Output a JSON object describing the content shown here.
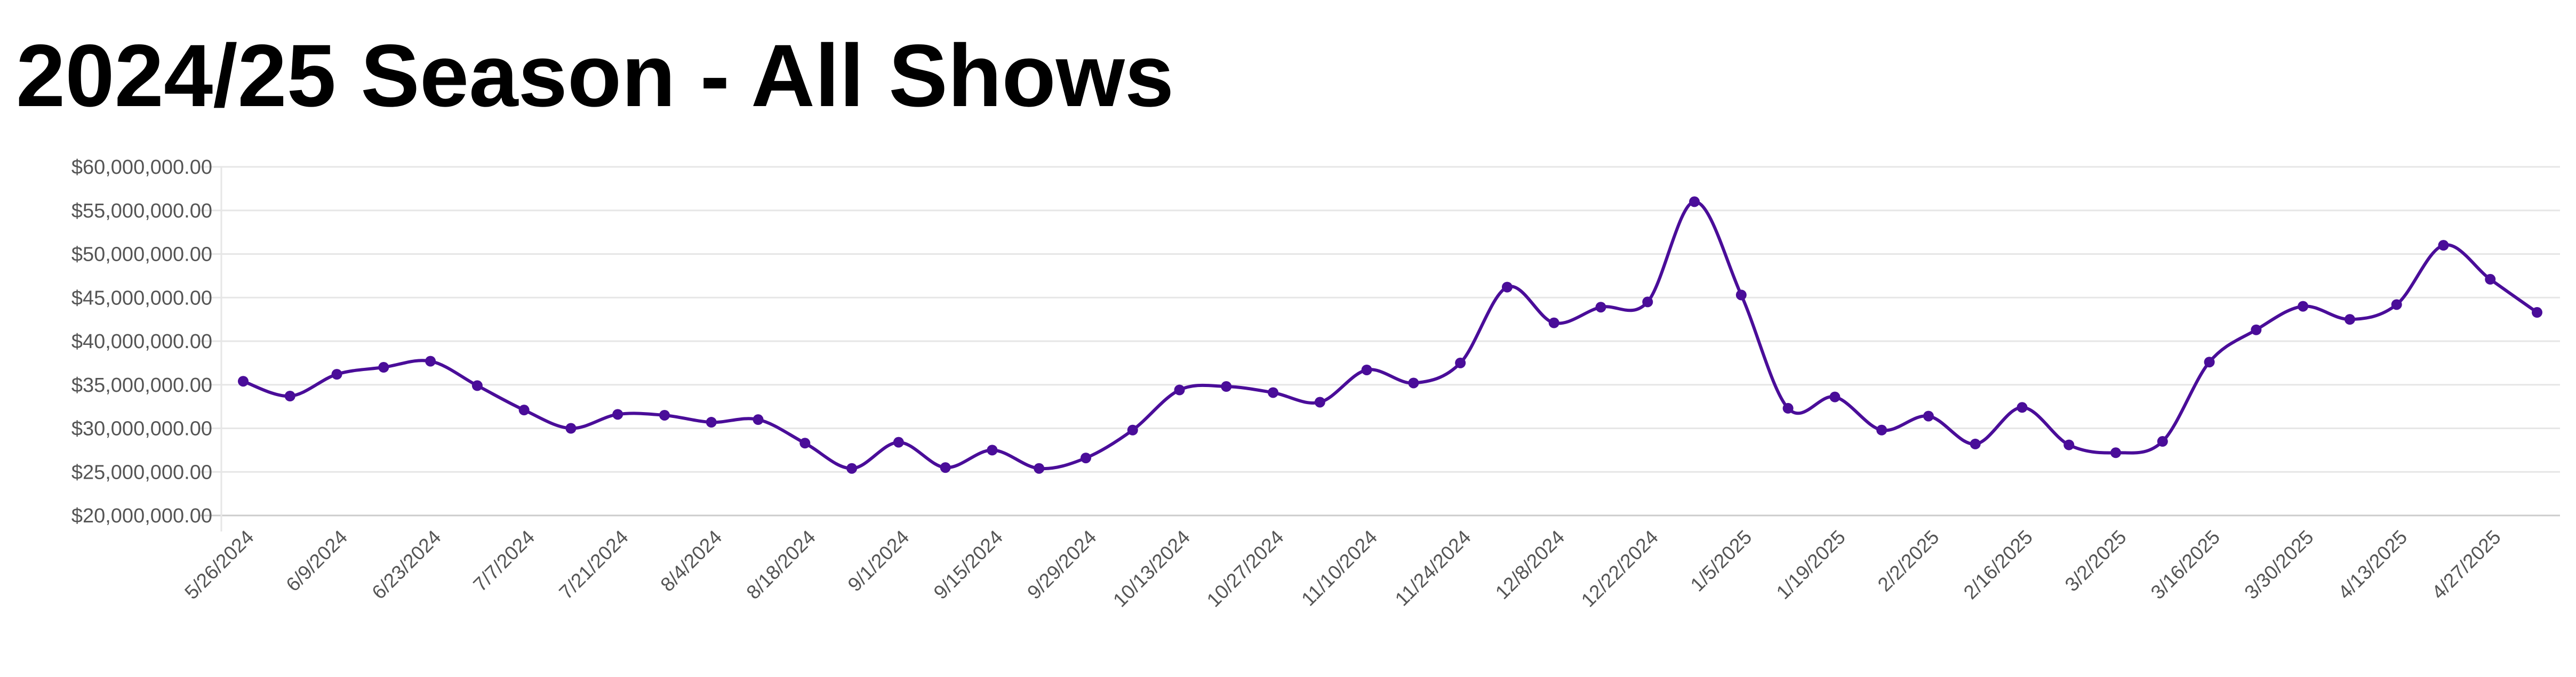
{
  "title": "2024/25 Season - All Shows",
  "chart_data": {
    "type": "line",
    "title": "2024/25 Season - All Shows",
    "xlabel": "",
    "ylabel": "",
    "x": [
      "5/26/2024",
      "6/2/2024",
      "6/9/2024",
      "6/16/2024",
      "6/23/2024",
      "6/30/2024",
      "7/7/2024",
      "7/14/2024",
      "7/21/2024",
      "7/28/2024",
      "8/4/2024",
      "8/11/2024",
      "8/18/2024",
      "8/25/2024",
      "9/1/2024",
      "9/8/2024",
      "9/15/2024",
      "9/22/2024",
      "9/29/2024",
      "10/6/2024",
      "10/13/2024",
      "10/20/2024",
      "10/27/2024",
      "11/3/2024",
      "11/10/2024",
      "11/17/2024",
      "11/24/2024",
      "12/1/2024",
      "12/8/2024",
      "12/15/2024",
      "12/22/2024",
      "12/29/2024",
      "1/5/2025",
      "1/12/2025",
      "1/19/2025",
      "1/26/2025",
      "2/2/2025",
      "2/9/2025",
      "2/16/2025",
      "2/23/2025",
      "3/2/2025",
      "3/9/2025",
      "3/16/2025",
      "3/23/2025",
      "3/30/2025",
      "4/6/2025",
      "4/13/2025",
      "4/20/2025",
      "4/27/2025",
      "5/4/2025"
    ],
    "values": [
      35400000,
      33700000,
      36200000,
      37000000,
      37700000,
      34900000,
      32100000,
      30000000,
      31600000,
      31500000,
      30700000,
      31000000,
      28300000,
      25400000,
      28400000,
      25500000,
      27500000,
      25400000,
      26600000,
      29800000,
      34400000,
      34800000,
      34100000,
      33000000,
      36700000,
      35200000,
      37500000,
      46200000,
      42100000,
      43900000,
      44500000,
      56000000,
      45300000,
      32300000,
      33600000,
      29800000,
      31400000,
      28200000,
      32400000,
      28100000,
      27200000,
      28500000,
      37600000,
      41300000,
      44000000,
      42500000,
      44200000,
      51000000,
      47100000,
      43300000
    ],
    "xtick_labels": [
      "5/26/2024",
      "6/9/2024",
      "6/23/2024",
      "7/7/2024",
      "7/21/2024",
      "8/4/2024",
      "8/18/2024",
      "9/1/2024",
      "9/15/2024",
      "9/29/2024",
      "10/13/2024",
      "10/27/2024",
      "11/10/2024",
      "11/24/2024",
      "12/8/2024",
      "12/22/2024",
      "1/5/2025",
      "1/19/2025",
      "2/2/2025",
      "2/16/2025",
      "3/2/2025",
      "3/16/2025",
      "3/30/2025",
      "4/13/2025",
      "4/27/2025"
    ],
    "ytick_labels": [
      "$20,000,000.00",
      "$25,000,000.00",
      "$30,000,000.00",
      "$35,000,000.00",
      "$40,000,000.00",
      "$45,000,000.00",
      "$50,000,000.00",
      "$55,000,000.00",
      "$60,000,000.00"
    ],
    "ylim": [
      20000000,
      60000000
    ],
    "ytick_step": 5000000,
    "grid": true,
    "line_color": "#4a0d99",
    "grid_color": "#e6e6e6",
    "axis_color": "#cccccc"
  }
}
